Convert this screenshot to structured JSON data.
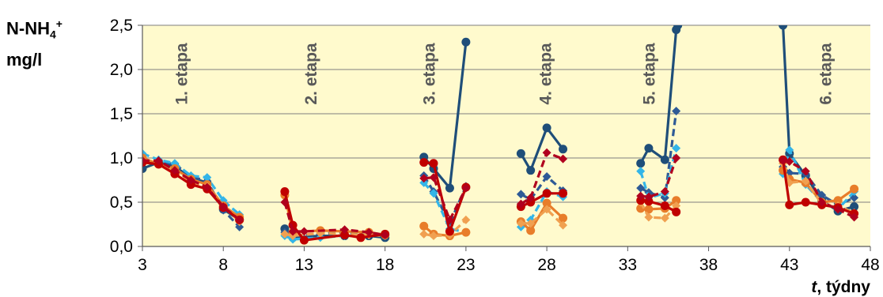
{
  "chart_data": {
    "type": "line",
    "ylabel": {
      "main": "N-NH",
      "sub": "4",
      "sup": "+",
      "unit": "mg/l"
    },
    "xlabel": {
      "var": "t",
      "rest": ", týdny"
    },
    "xlim": [
      3,
      48
    ],
    "ylim": [
      0,
      2.5
    ],
    "xticks": [
      "3",
      "8",
      "13",
      "18",
      "23",
      "28",
      "33",
      "38",
      "43",
      "48"
    ],
    "yticks": [
      "0,0",
      "0,5",
      "1,0",
      "1,5",
      "2,0",
      "2,5"
    ],
    "grid": true,
    "background": "#fffacd",
    "stages": [
      {
        "label": "1. etapa",
        "x": 5.5
      },
      {
        "label": "2. etapa",
        "x": 13.5
      },
      {
        "label": "3. etapa",
        "x": 20.8
      },
      {
        "label": "4. etapa",
        "x": 28
      },
      {
        "label": "5. etapa",
        "x": 34.4
      },
      {
        "label": "6. etapa",
        "x": 45.3
      }
    ],
    "series": [
      {
        "color": "#1f4e79",
        "dash": false,
        "marker": "circle",
        "segments": [
          [
            [
              3,
              0.88
            ],
            [
              4,
              0.95
            ],
            [
              5,
              0.9
            ],
            [
              6,
              0.78
            ],
            [
              7,
              0.72
            ],
            [
              8,
              0.42
            ],
            [
              9,
              0.3
            ]
          ],
          [
            [
              11.8,
              0.2
            ],
            [
              12.3,
              0.1
            ],
            [
              14,
              0.12
            ],
            [
              15.5,
              0.12
            ],
            [
              17,
              0.12
            ],
            [
              18,
              0.1
            ]
          ],
          [
            [
              20.4,
              1.01
            ],
            [
              21,
              0.88
            ],
            [
              22,
              0.66
            ],
            [
              23,
              2.31
            ]
          ],
          [
            [
              26.4,
              1.05
            ],
            [
              27,
              0.86
            ],
            [
              28,
              1.34
            ],
            [
              29,
              1.1
            ]
          ],
          [
            [
              33.8,
              0.94
            ],
            [
              34.3,
              1.11
            ],
            [
              35.3,
              0.98
            ],
            [
              36,
              2.45
            ],
            [
              36.1,
              2.5
            ]
          ],
          [
            [
              42.6,
              2.5
            ],
            [
              43,
              1.05
            ],
            [
              44,
              0.8
            ],
            [
              45,
              0.52
            ],
            [
              46,
              0.4
            ],
            [
              47,
              0.45
            ]
          ]
        ]
      },
      {
        "color": "#2e5a96",
        "dash": true,
        "marker": "diamond",
        "segments": [
          [
            [
              3,
              0.98
            ],
            [
              4,
              0.96
            ],
            [
              5,
              0.93
            ],
            [
              6,
              0.79
            ],
            [
              7,
              0.74
            ],
            [
              8,
              0.41
            ],
            [
              9,
              0.22
            ]
          ],
          [
            [
              11.8,
              0.16
            ],
            [
              12.3,
              0.12
            ],
            [
              14,
              0.14
            ],
            [
              15.5,
              0.16
            ],
            [
              17,
              0.14
            ],
            [
              18,
              0.12
            ]
          ],
          [
            [
              20.4,
              0.8
            ],
            [
              21,
              0.62
            ],
            [
              22,
              0.26
            ],
            [
              23,
              0.68
            ]
          ],
          [
            [
              26.4,
              0.59
            ],
            [
              27,
              0.53
            ],
            [
              28,
              0.79
            ],
            [
              29,
              0.63
            ]
          ],
          [
            [
              33.8,
              0.66
            ],
            [
              34.3,
              0.61
            ],
            [
              35.3,
              0.55
            ],
            [
              36,
              1.53
            ]
          ],
          [
            [
              42.6,
              0.9
            ],
            [
              43,
              0.83
            ],
            [
              44,
              0.82
            ],
            [
              45,
              0.58
            ],
            [
              46,
              0.47
            ],
            [
              47,
              0.55
            ]
          ]
        ]
      },
      {
        "color": "#33b5e8",
        "dash": true,
        "marker": "diamond",
        "segments": [
          [
            [
              3,
              1.05
            ],
            [
              4,
              0.98
            ],
            [
              5,
              0.94
            ],
            [
              6,
              0.8
            ],
            [
              7,
              0.78
            ],
            [
              8,
              0.52
            ],
            [
              9,
              0.36
            ]
          ],
          [
            [
              11.8,
              0.12
            ],
            [
              12.3,
              0.08
            ],
            [
              14,
              0.1
            ],
            [
              15.5,
              0.12
            ],
            [
              17,
              0.14
            ],
            [
              18,
              0.12
            ]
          ],
          [
            [
              20.4,
              0.72
            ],
            [
              21,
              0.6
            ],
            [
              22,
              0.2
            ],
            [
              23,
              0.16
            ]
          ],
          [
            [
              26.4,
              0.22
            ],
            [
              27,
              0.3
            ],
            [
              28,
              0.62
            ],
            [
              29,
              0.56
            ]
          ],
          [
            [
              33.8,
              0.85
            ],
            [
              34.3,
              0.55
            ],
            [
              35.3,
              0.6
            ],
            [
              36,
              1.11
            ]
          ],
          [
            [
              42.6,
              0.82
            ],
            [
              43,
              1.09
            ],
            [
              44,
              0.7
            ],
            [
              45,
              0.5
            ],
            [
              46,
              0.42
            ],
            [
              47,
              0.62
            ]
          ]
        ]
      },
      {
        "color": "#e87d2a",
        "dash": false,
        "marker": "circle",
        "segments": [
          [
            [
              3,
              1.0
            ],
            [
              4,
              0.93
            ],
            [
              5,
              0.88
            ],
            [
              6,
              0.76
            ],
            [
              7,
              0.7
            ],
            [
              8,
              0.46
            ],
            [
              9,
              0.33
            ]
          ],
          [
            [
              11.8,
              0.58
            ],
            [
              12.3,
              0.16
            ],
            [
              14,
              0.18
            ],
            [
              15.5,
              0.17
            ],
            [
              17,
              0.16
            ],
            [
              18,
              0.13
            ]
          ],
          [
            [
              20.4,
              0.23
            ],
            [
              21,
              0.14
            ],
            [
              22,
              0.12
            ],
            [
              23,
              0.16
            ]
          ],
          [
            [
              26.4,
              0.28
            ],
            [
              27,
              0.18
            ],
            [
              28,
              0.49
            ],
            [
              29,
              0.32
            ]
          ],
          [
            [
              33.8,
              0.43
            ],
            [
              34.3,
              0.42
            ],
            [
              35.3,
              0.43
            ],
            [
              36,
              0.52
            ]
          ],
          [
            [
              42.6,
              0.86
            ],
            [
              43,
              0.76
            ],
            [
              44,
              0.72
            ],
            [
              45,
              0.5
            ],
            [
              46,
              0.52
            ],
            [
              47,
              0.65
            ]
          ]
        ]
      },
      {
        "color": "#f0a050",
        "dash": true,
        "marker": "diamond",
        "segments": [
          [
            [
              3,
              0.96
            ],
            [
              4,
              0.93
            ],
            [
              5,
              0.86
            ],
            [
              6,
              0.72
            ],
            [
              7,
              0.68
            ],
            [
              8,
              0.45
            ],
            [
              9,
              0.28
            ]
          ],
          [
            [
              11.8,
              0.14
            ],
            [
              12.3,
              0.12
            ],
            [
              14,
              0.15
            ],
            [
              15.5,
              0.14
            ],
            [
              17,
              0.13
            ],
            [
              18,
              0.12
            ]
          ],
          [
            [
              20.4,
              0.14
            ],
            [
              21,
              0.12
            ],
            [
              22,
              0.13
            ],
            [
              23,
              0.3
            ]
          ],
          [
            [
              26.4,
              0.26
            ],
            [
              27,
              0.26
            ],
            [
              28,
              0.42
            ],
            [
              29,
              0.24
            ]
          ],
          [
            [
              33.8,
              0.5
            ],
            [
              34.3,
              0.33
            ],
            [
              35.3,
              0.32
            ],
            [
              36,
              0.46
            ]
          ],
          [
            [
              42.6,
              0.94
            ],
            [
              43,
              0.72
            ],
            [
              44,
              0.74
            ],
            [
              45,
              0.48
            ],
            [
              46,
              0.46
            ],
            [
              47,
              0.38
            ]
          ]
        ]
      },
      {
        "color": "#c00000",
        "dash": false,
        "marker": "circle",
        "segments": [
          [
            [
              3,
              0.95
            ],
            [
              4,
              0.93
            ],
            [
              5,
              0.82
            ],
            [
              6,
              0.7
            ],
            [
              7,
              0.65
            ],
            [
              8,
              0.44
            ],
            [
              9,
              0.3
            ]
          ],
          [
            [
              11.8,
              0.62
            ],
            [
              12.3,
              0.24
            ],
            [
              13,
              0.07
            ],
            [
              15.5,
              0.13
            ],
            [
              16.5,
              0.1
            ],
            [
              18,
              0.14
            ]
          ],
          [
            [
              20.4,
              0.95
            ],
            [
              21,
              0.94
            ],
            [
              22,
              0.17
            ],
            [
              23,
              0.67
            ]
          ],
          [
            [
              26.4,
              0.45
            ],
            [
              27,
              0.5
            ],
            [
              28,
              0.6
            ],
            [
              29,
              0.6
            ]
          ],
          [
            [
              33.8,
              0.52
            ],
            [
              34.3,
              0.51
            ],
            [
              35.3,
              0.46
            ],
            [
              36,
              0.39
            ]
          ],
          [
            [
              42.6,
              0.98
            ],
            [
              43,
              0.47
            ],
            [
              44,
              0.5
            ],
            [
              45,
              0.47
            ],
            [
              46,
              0.44
            ],
            [
              47,
              0.37
            ]
          ]
        ]
      },
      {
        "color": "#b0001e",
        "dash": true,
        "marker": "diamond",
        "segments": [
          [
            [
              3,
              0.97
            ],
            [
              4,
              0.97
            ],
            [
              5,
              0.86
            ],
            [
              6,
              0.75
            ],
            [
              7,
              0.67
            ],
            [
              8,
              0.45
            ],
            [
              9,
              0.3
            ]
          ],
          [
            [
              11.8,
              0.5
            ],
            [
              12.3,
              0.17
            ],
            [
              13,
              0.17
            ],
            [
              15.5,
              0.19
            ],
            [
              17,
              0.16
            ],
            [
              18,
              0.13
            ]
          ],
          [
            [
              20.4,
              0.77
            ],
            [
              21,
              0.78
            ],
            [
              22,
              0.3
            ],
            [
              23,
              0.66
            ]
          ],
          [
            [
              26.4,
              0.48
            ],
            [
              27,
              0.55
            ],
            [
              28,
              1.06
            ],
            [
              29,
              0.99
            ]
          ],
          [
            [
              33.8,
              0.57
            ],
            [
              34.3,
              0.56
            ],
            [
              35.3,
              0.62
            ],
            [
              36,
              1.0
            ]
          ],
          [
            [
              42.6,
              0.97
            ],
            [
              43,
              0.96
            ],
            [
              44,
              0.85
            ],
            [
              45,
              0.5
            ],
            [
              46,
              0.42
            ],
            [
              47,
              0.33
            ]
          ]
        ]
      }
    ]
  }
}
